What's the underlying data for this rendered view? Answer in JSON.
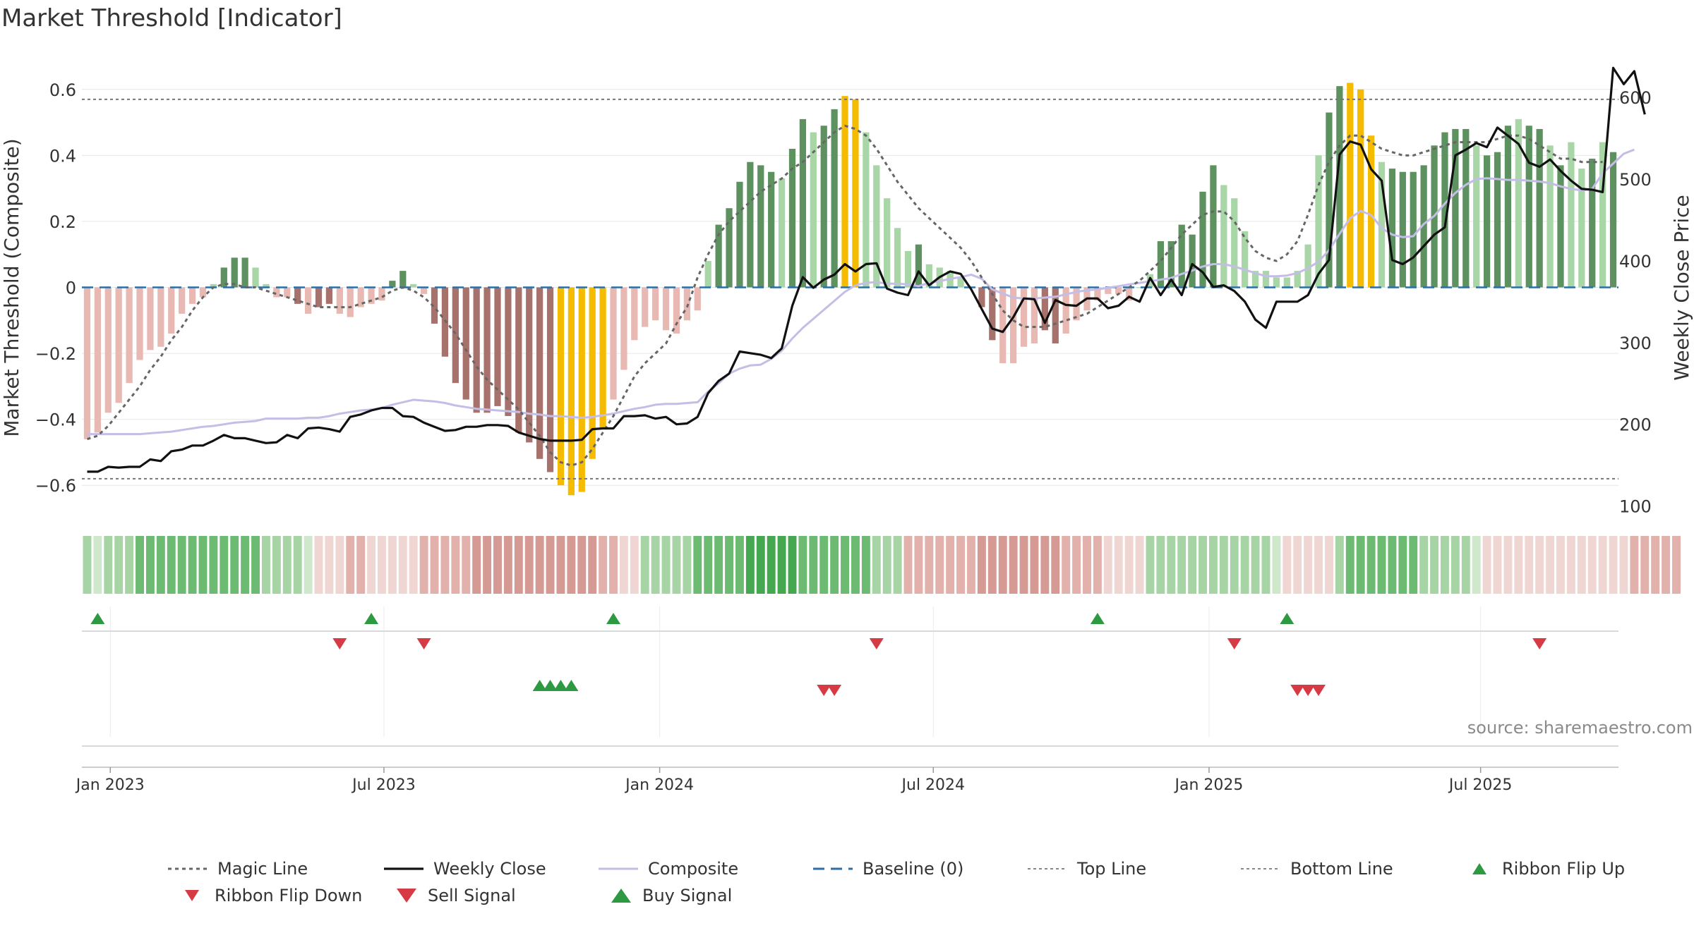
{
  "title": "Market Threshold [Indicator]",
  "source": "source: sharemaestro.com",
  "colors": {
    "neg_light": "#e8b9b3",
    "neg_dark": "#a8726c",
    "pos_light": "#a8d6a6",
    "pos_dark": "#5e9160",
    "extreme": "#f5bb00",
    "weekly_close": "#111111",
    "composite": "#c4bde6",
    "magic": "#666666",
    "baseline": "#2c6ea8",
    "threshold": "#888888",
    "buy": "#2d9940",
    "sell": "#d63a44"
  },
  "chart_data": {
    "type": "bar",
    "title": "Market Threshold [Indicator]",
    "ylabel": "Market Threshold (Composite)",
    "y2label": "Weekly Close Price",
    "ylim": [
      -0.7,
      0.7
    ],
    "y2lim": [
      85,
      650
    ],
    "yticks": [
      0.6,
      0.4,
      0.2,
      0,
      -0.2,
      -0.4,
      -0.6
    ],
    "ytick_labels": [
      "0.6",
      "0.4",
      "0.2",
      "0",
      "−0.2",
      "−0.4",
      "−0.6"
    ],
    "y2ticks": [
      600,
      500,
      400,
      300,
      200,
      100
    ],
    "y2tick_labels": [
      "600",
      "500",
      "400",
      "300",
      "200",
      "100"
    ],
    "xticks": [
      {
        "label": "Jan 2023",
        "week": 2.2
      },
      {
        "label": "Jul 2023",
        "week": 28.2
      },
      {
        "label": "Jan 2024",
        "week": 54.4
      },
      {
        "label": "Jul 2024",
        "week": 80.4
      },
      {
        "label": "Jan 2025",
        "week": 106.6
      },
      {
        "label": "Jul 2025",
        "week": 132.4
      }
    ],
    "top_line": 0.57,
    "bottom_line": -0.58,
    "baseline": 0,
    "composite_bars": [
      -0.46,
      -0.44,
      -0.38,
      -0.35,
      -0.29,
      -0.22,
      -0.19,
      -0.18,
      -0.14,
      -0.08,
      -0.05,
      -0.03,
      0.01,
      0.06,
      0.09,
      0.09,
      0.06,
      0.01,
      -0.03,
      -0.03,
      -0.05,
      -0.08,
      -0.06,
      -0.05,
      -0.08,
      -0.09,
      -0.06,
      -0.05,
      -0.04,
      0.02,
      0.05,
      0.01,
      -0.02,
      -0.11,
      -0.21,
      -0.29,
      -0.34,
      -0.38,
      -0.38,
      -0.36,
      -0.39,
      -0.44,
      -0.47,
      -0.52,
      -0.56,
      -0.6,
      -0.63,
      -0.62,
      -0.52,
      -0.43,
      -0.34,
      -0.25,
      -0.16,
      -0.12,
      -0.1,
      -0.13,
      -0.14,
      -0.1,
      -0.07,
      0.08,
      0.19,
      0.24,
      0.32,
      0.38,
      0.37,
      0.35,
      0.33,
      0.42,
      0.51,
      0.47,
      0.49,
      0.54,
      0.58,
      0.57,
      0.47,
      0.37,
      0.27,
      0.18,
      0.11,
      0.13,
      0.07,
      0.06,
      0.05,
      0.03,
      0.0,
      -0.06,
      -0.16,
      -0.23,
      -0.23,
      -0.18,
      -0.17,
      -0.13,
      -0.17,
      -0.14,
      -0.1,
      -0.07,
      -0.04,
      -0.02,
      -0.02,
      -0.04,
      0.0,
      0.04,
      0.14,
      0.14,
      0.19,
      0.16,
      0.29,
      0.37,
      0.31,
      0.27,
      0.17,
      0.05,
      0.05,
      0.03,
      0.03,
      0.05,
      0.13,
      0.4,
      0.53,
      0.61,
      0.62,
      0.6,
      0.46,
      0.38,
      0.36,
      0.35,
      0.35,
      0.37,
      0.43,
      0.47,
      0.48,
      0.48,
      0.43,
      0.4,
      0.41,
      0.49,
      0.51,
      0.49,
      0.48,
      0.43,
      0.37,
      0.44,
      0.36,
      0.39,
      0.44,
      0.41
    ],
    "composite_bar_style": "LLLLLLLLLLLLLDDDLLLLDLDDLLLLLDDLLDDDDDDDDDDDDEEEEELLLLLLLLLLDDDDDDLDDLDDEELLLLLDLLLLDDDLLLLDDLLLLLLLLLDDDDDDLLLLLLLLLLDDEEELDDDDDDDDLDDDLDDLDLLDLDLLLLL",
    "magic_line": [
      -0.46,
      -0.45,
      -0.42,
      -0.38,
      -0.34,
      -0.3,
      -0.25,
      -0.21,
      -0.16,
      -0.12,
      -0.07,
      -0.03,
      0.0,
      0.01,
      0.01,
      0.0,
      0.0,
      -0.01,
      -0.02,
      -0.03,
      -0.04,
      -0.05,
      -0.06,
      -0.06,
      -0.06,
      -0.06,
      -0.05,
      -0.04,
      -0.03,
      -0.01,
      0.0,
      -0.01,
      -0.03,
      -0.06,
      -0.1,
      -0.14,
      -0.19,
      -0.24,
      -0.28,
      -0.31,
      -0.34,
      -0.37,
      -0.41,
      -0.45,
      -0.5,
      -0.53,
      -0.54,
      -0.53,
      -0.49,
      -0.44,
      -0.39,
      -0.33,
      -0.27,
      -0.23,
      -0.2,
      -0.17,
      -0.11,
      -0.06,
      0.03,
      0.1,
      0.16,
      0.2,
      0.23,
      0.26,
      0.29,
      0.31,
      0.33,
      0.36,
      0.38,
      0.41,
      0.44,
      0.47,
      0.49,
      0.48,
      0.46,
      0.42,
      0.37,
      0.32,
      0.28,
      0.24,
      0.21,
      0.18,
      0.15,
      0.12,
      0.08,
      0.03,
      -0.02,
      -0.07,
      -0.1,
      -0.12,
      -0.12,
      -0.12,
      -0.11,
      -0.1,
      -0.09,
      -0.08,
      -0.06,
      -0.04,
      -0.02,
      0.0,
      0.02,
      0.05,
      0.08,
      0.12,
      0.16,
      0.19,
      0.22,
      0.23,
      0.23,
      0.2,
      0.15,
      0.11,
      0.09,
      0.08,
      0.1,
      0.14,
      0.22,
      0.31,
      0.38,
      0.43,
      0.46,
      0.46,
      0.44,
      0.42,
      0.41,
      0.4,
      0.4,
      0.41,
      0.42,
      0.43,
      0.44,
      0.44,
      0.44,
      0.44,
      0.45,
      0.46,
      0.46,
      0.45,
      0.43,
      0.41,
      0.39,
      0.39,
      0.38,
      0.38,
      0.38
    ],
    "weekly_close": [
      142,
      142,
      148,
      147,
      148,
      148,
      157,
      155,
      167,
      169,
      174,
      174,
      180,
      187,
      183,
      183,
      180,
      177,
      178,
      187,
      183,
      195,
      196,
      194,
      191,
      209,
      212,
      217,
      220,
      220,
      210,
      209,
      202,
      197,
      192,
      193,
      197,
      197,
      199,
      199,
      198,
      190,
      186,
      182,
      180,
      180,
      180,
      181,
      194,
      195,
      195,
      210,
      210,
      211,
      207,
      209,
      200,
      201,
      209,
      238,
      253,
      262,
      289,
      287,
      285,
      281,
      293,
      345,
      380,
      367,
      377,
      383,
      396,
      387,
      396,
      397,
      366,
      361,
      358,
      387,
      370,
      380,
      387,
      384,
      365,
      341,
      317,
      313,
      331,
      354,
      353,
      324,
      352,
      346,
      345,
      354,
      354,
      342,
      345,
      356,
      350,
      379,
      358,
      377,
      358,
      396,
      386,
      368,
      370,
      363,
      350,
      328,
      318,
      350,
      350,
      350,
      358,
      384,
      401,
      530,
      546,
      542,
      512,
      498,
      401,
      396,
      404,
      418,
      432,
      441,
      529,
      536,
      544,
      539,
      563,
      553,
      543,
      520,
      515,
      524,
      510,
      498,
      488,
      487,
      484,
      636,
      616,
      632,
      579
    ],
    "composite_line": [
      188,
      188,
      188,
      188,
      188,
      188,
      189,
      190,
      191,
      193,
      195,
      197,
      198,
      200,
      202,
      203,
      204,
      207,
      207,
      207,
      207,
      208,
      208,
      210,
      213,
      215,
      217,
      218,
      220,
      224,
      227,
      230,
      229,
      228,
      226,
      223,
      221,
      219,
      218,
      217,
      216,
      215,
      213,
      212,
      210,
      210,
      209,
      208,
      209,
      211,
      213,
      216,
      219,
      221,
      224,
      225,
      225,
      226,
      227,
      240,
      250,
      262,
      268,
      272,
      273,
      280,
      290,
      305,
      318,
      329,
      340,
      351,
      362,
      370,
      373,
      374,
      372,
      372,
      371,
      369,
      373,
      375,
      378,
      380,
      383,
      378,
      365,
      360,
      355,
      354,
      354,
      355,
      356,
      359,
      362,
      364,
      365,
      367,
      369,
      371,
      373,
      375,
      377,
      379,
      384,
      388,
      393,
      396,
      396,
      393,
      389,
      385,
      381,
      381,
      382,
      385,
      391,
      399,
      413,
      433,
      452,
      461,
      456,
      440,
      432,
      429,
      430,
      445,
      455,
      470,
      483,
      493,
      500,
      501,
      500,
      499,
      499,
      498,
      497,
      495,
      491,
      488,
      486,
      488,
      507,
      519,
      531,
      536
    ]
  },
  "ribbon": {
    "shade_levels": [
      1,
      0,
      1,
      1,
      1,
      2,
      2,
      2,
      2,
      2,
      2,
      2,
      2,
      2,
      2,
      2,
      2,
      1,
      1,
      1,
      1,
      0,
      0,
      0,
      0,
      -1,
      -1,
      0,
      0,
      0,
      0,
      0,
      -1,
      -1,
      -1,
      -1,
      -1,
      -2,
      -2,
      -2,
      -2,
      -2,
      -2,
      -2,
      -2,
      -2,
      -2,
      -2,
      -2,
      -1,
      -1,
      0,
      0,
      1,
      1,
      1,
      1,
      1,
      2,
      2,
      2,
      2,
      2,
      3,
      3,
      3,
      3,
      3,
      2,
      2,
      2,
      2,
      2,
      2,
      2,
      1,
      1,
      1,
      -1,
      -1,
      -1,
      -1,
      -1,
      -1,
      -1,
      -2,
      -2,
      -2,
      -2,
      -2,
      -2,
      -2,
      -2,
      -1,
      -1,
      -1,
      -1,
      0,
      0,
      0,
      0,
      1,
      1,
      1,
      1,
      1,
      1,
      1,
      1,
      1,
      1,
      1,
      1,
      0,
      0,
      0,
      0,
      0,
      0,
      1,
      2,
      2,
      2,
      2,
      2,
      2,
      2,
      1,
      1,
      1,
      1,
      1,
      0,
      0,
      0,
      0,
      0,
      0,
      0,
      0,
      0,
      0,
      0,
      0,
      0,
      0,
      0,
      -1,
      -1,
      -1,
      -1,
      -1
    ]
  },
  "signals": {
    "ribbon_flip_up_weeks": [
      1,
      27,
      50,
      96,
      114
    ],
    "ribbon_flip_down_weeks": [
      24,
      32,
      75,
      109,
      138
    ],
    "buy_signal_weeks": [
      43,
      44,
      45,
      46
    ],
    "sell_signal_weeks": [
      70,
      71,
      115,
      116,
      117
    ]
  },
  "legend": [
    {
      "key": "magic",
      "label": "Magic Line"
    },
    {
      "key": "weekly_close",
      "label": "Weekly Close"
    },
    {
      "key": "composite",
      "label": "Composite"
    },
    {
      "key": "baseline",
      "label": "Baseline (0)"
    },
    {
      "key": "top_line",
      "label": "Top Line"
    },
    {
      "key": "bottom_line",
      "label": "Bottom Line"
    },
    {
      "key": "ribbon_up",
      "label": "Ribbon Flip Up"
    },
    {
      "key": "ribbon_down",
      "label": "Ribbon Flip Down"
    },
    {
      "key": "sell",
      "label": "Sell Signal"
    },
    {
      "key": "buy",
      "label": "Buy Signal"
    }
  ]
}
